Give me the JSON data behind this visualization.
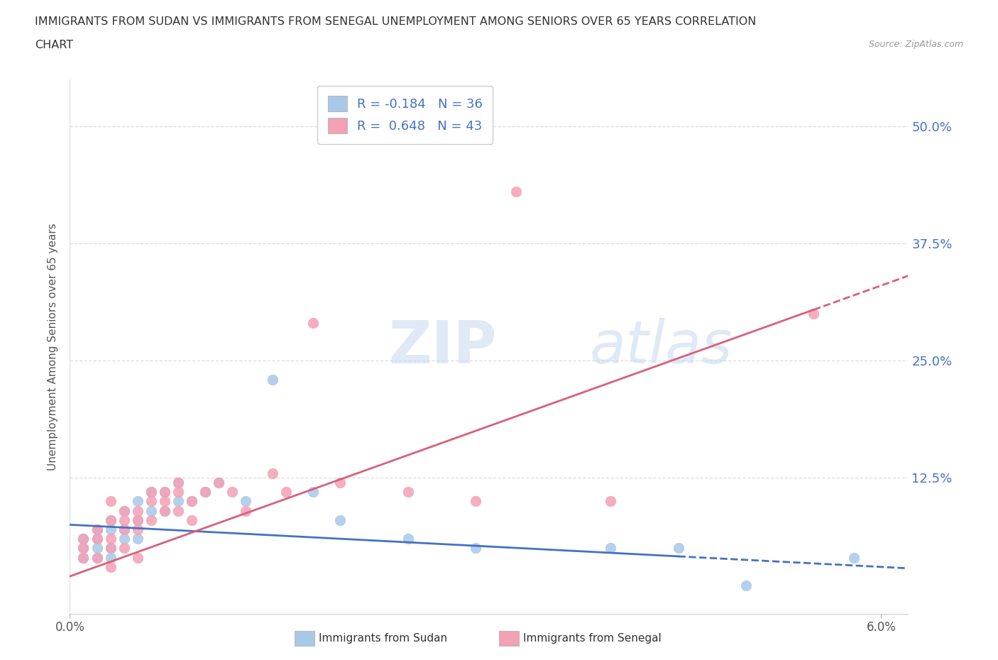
{
  "title_line1": "IMMIGRANTS FROM SUDAN VS IMMIGRANTS FROM SENEGAL UNEMPLOYMENT AMONG SENIORS OVER 65 YEARS CORRELATION",
  "title_line2": "CHART",
  "source": "Source: ZipAtlas.com",
  "ylabel": "Unemployment Among Seniors over 65 years",
  "xlim": [
    0.0,
    0.062
  ],
  "ylim": [
    -0.02,
    0.55
  ],
  "sudan_R": -0.184,
  "sudan_N": 36,
  "senegal_R": 0.648,
  "senegal_N": 43,
  "sudan_color": "#a8c8e8",
  "senegal_color": "#f4a0b5",
  "sudan_line_color": "#4472c4",
  "senegal_line_color": "#d9607a",
  "background_color": "#ffffff",
  "ytick_vals": [
    0.0,
    0.125,
    0.25,
    0.375,
    0.5
  ],
  "ytick_labels": [
    "",
    "12.5%",
    "25.0%",
    "37.5%",
    "50.0%"
  ],
  "sudan_x": [
    0.001,
    0.001,
    0.001,
    0.002,
    0.002,
    0.002,
    0.002,
    0.003,
    0.003,
    0.003,
    0.003,
    0.004,
    0.004,
    0.004,
    0.005,
    0.005,
    0.005,
    0.006,
    0.006,
    0.007,
    0.007,
    0.008,
    0.008,
    0.009,
    0.01,
    0.011,
    0.013,
    0.015,
    0.018,
    0.02,
    0.025,
    0.03,
    0.04,
    0.045,
    0.05,
    0.058
  ],
  "sudan_y": [
    0.05,
    0.06,
    0.04,
    0.07,
    0.06,
    0.05,
    0.04,
    0.08,
    0.07,
    0.05,
    0.04,
    0.09,
    0.07,
    0.06,
    0.1,
    0.08,
    0.06,
    0.11,
    0.09,
    0.11,
    0.09,
    0.12,
    0.1,
    0.1,
    0.11,
    0.12,
    0.1,
    0.23,
    0.11,
    0.08,
    0.06,
    0.05,
    0.05,
    0.05,
    0.01,
    0.04
  ],
  "senegal_x": [
    0.001,
    0.001,
    0.001,
    0.002,
    0.002,
    0.002,
    0.003,
    0.003,
    0.003,
    0.003,
    0.004,
    0.004,
    0.004,
    0.005,
    0.005,
    0.005,
    0.006,
    0.006,
    0.007,
    0.007,
    0.008,
    0.008,
    0.009,
    0.01,
    0.011,
    0.012,
    0.013,
    0.015,
    0.016,
    0.018,
    0.02,
    0.025,
    0.03,
    0.033,
    0.04,
    0.055,
    0.003,
    0.004,
    0.005,
    0.006,
    0.007,
    0.008,
    0.009
  ],
  "senegal_y": [
    0.06,
    0.05,
    0.04,
    0.07,
    0.06,
    0.04,
    0.08,
    0.06,
    0.05,
    0.03,
    0.08,
    0.07,
    0.05,
    0.09,
    0.07,
    0.04,
    0.1,
    0.08,
    0.11,
    0.09,
    0.12,
    0.09,
    0.1,
    0.11,
    0.12,
    0.11,
    0.09,
    0.13,
    0.11,
    0.29,
    0.12,
    0.11,
    0.1,
    0.43,
    0.1,
    0.3,
    0.1,
    0.09,
    0.08,
    0.11,
    0.1,
    0.11,
    0.08
  ],
  "sudan_line_start_x": 0.0,
  "sudan_line_end_x": 0.062,
  "sudan_line_solid_end_x": 0.045,
  "senegal_line_start_x": 0.0,
  "senegal_line_end_x": 0.062,
  "senegal_line_solid_end_x": 0.055
}
